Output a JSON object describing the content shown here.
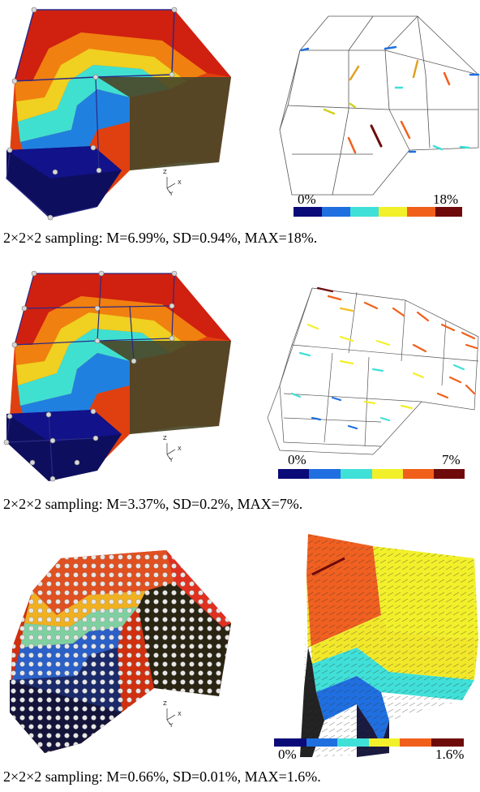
{
  "panels": [
    {
      "colorbar": {
        "min_label": "0%",
        "max_label": "18%"
      },
      "caption": "2×2×2 sampling: M=6.99%, SD=0.94%, MAX=18%."
    },
    {
      "colorbar": {
        "min_label": "0%",
        "max_label": "7%"
      },
      "caption": "2×2×2 sampling: M=3.37%, SD=0.2%, MAX=7%."
    },
    {
      "colorbar": {
        "min_label": "0%",
        "max_label": "1.6%"
      },
      "caption": "2×2×2 sampling: M=0.66%, SD=0.01%, MAX=1.6%."
    }
  ],
  "axes": {
    "z": "Z",
    "y": "Y",
    "x": "X"
  },
  "colormap": [
    "#0a0a78",
    "#1f6fe0",
    "#3fe0d8",
    "#f2f02a",
    "#f0601a",
    "#6e0a0a"
  ]
}
